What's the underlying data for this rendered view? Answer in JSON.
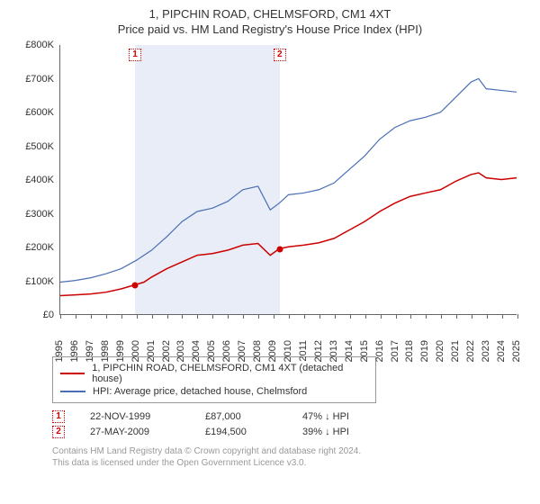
{
  "title_line1": "1, PIPCHIN ROAD, CHELMSFORD, CM1 4XT",
  "title_line2": "Price paid vs. HM Land Registry's House Price Index (HPI)",
  "chart": {
    "type": "line",
    "x_years": [
      1995,
      1996,
      1997,
      1998,
      1999,
      2000,
      2001,
      2002,
      2003,
      2004,
      2005,
      2006,
      2007,
      2008,
      2009,
      2010,
      2011,
      2012,
      2013,
      2014,
      2015,
      2016,
      2017,
      2018,
      2019,
      2020,
      2021,
      2022,
      2023,
      2024,
      2025
    ],
    "xlim": [
      1995,
      2025
    ],
    "ylim": [
      0,
      800000
    ],
    "ytick_step": 100000,
    "ytick_prefix": "£",
    "ytick_suffix": "K",
    "background_color": "#ffffff",
    "shade_color": "#e8edf7",
    "shade_from_year": 1999.9,
    "shade_to_year": 2009.4,
    "axis_color": "#666666",
    "tick_fontsize": 11,
    "series": [
      {
        "name": "price_paid",
        "label": "1, PIPCHIN ROAD, CHELMSFORD, CM1 4XT (detached house)",
        "color": "#cc0000",
        "line_width": 1.5,
        "points": [
          [
            1995,
            55000
          ],
          [
            1996,
            57000
          ],
          [
            1997,
            60000
          ],
          [
            1998,
            65000
          ],
          [
            1999,
            75000
          ],
          [
            1999.9,
            87000
          ],
          [
            2000.5,
            95000
          ],
          [
            2001,
            110000
          ],
          [
            2002,
            135000
          ],
          [
            2003,
            155000
          ],
          [
            2004,
            175000
          ],
          [
            2005,
            180000
          ],
          [
            2006,
            190000
          ],
          [
            2007,
            205000
          ],
          [
            2008,
            210000
          ],
          [
            2008.8,
            175000
          ],
          [
            2009.4,
            194500
          ],
          [
            2010,
            200000
          ],
          [
            2011,
            205000
          ],
          [
            2012,
            212000
          ],
          [
            2013,
            225000
          ],
          [
            2014,
            250000
          ],
          [
            2015,
            275000
          ],
          [
            2016,
            305000
          ],
          [
            2017,
            330000
          ],
          [
            2018,
            350000
          ],
          [
            2019,
            360000
          ],
          [
            2020,
            370000
          ],
          [
            2021,
            395000
          ],
          [
            2022,
            415000
          ],
          [
            2022.5,
            420000
          ],
          [
            2023,
            405000
          ],
          [
            2024,
            400000
          ],
          [
            2025,
            405000
          ]
        ]
      },
      {
        "name": "hpi",
        "label": "HPI: Average price, detached house, Chelmsford",
        "color": "#4a6fb5",
        "line_width": 1.2,
        "points": [
          [
            1995,
            95000
          ],
          [
            1996,
            100000
          ],
          [
            1997,
            108000
          ],
          [
            1998,
            120000
          ],
          [
            1999,
            135000
          ],
          [
            2000,
            160000
          ],
          [
            2001,
            190000
          ],
          [
            2002,
            230000
          ],
          [
            2003,
            275000
          ],
          [
            2004,
            305000
          ],
          [
            2005,
            315000
          ],
          [
            2006,
            335000
          ],
          [
            2007,
            370000
          ],
          [
            2008,
            380000
          ],
          [
            2008.8,
            310000
          ],
          [
            2009.4,
            330000
          ],
          [
            2010,
            355000
          ],
          [
            2011,
            360000
          ],
          [
            2012,
            370000
          ],
          [
            2013,
            390000
          ],
          [
            2014,
            430000
          ],
          [
            2015,
            470000
          ],
          [
            2016,
            520000
          ],
          [
            2017,
            555000
          ],
          [
            2018,
            575000
          ],
          [
            2019,
            585000
          ],
          [
            2020,
            600000
          ],
          [
            2021,
            645000
          ],
          [
            2022,
            690000
          ],
          [
            2022.5,
            700000
          ],
          [
            2023,
            670000
          ],
          [
            2024,
            665000
          ],
          [
            2025,
            660000
          ]
        ]
      }
    ],
    "sale_markers": [
      {
        "n": "1",
        "year": 1999.9,
        "value": 87000,
        "dot_color": "#cc0000"
      },
      {
        "n": "2",
        "year": 2009.4,
        "value": 194500,
        "dot_color": "#cc0000"
      }
    ]
  },
  "legend_border_color": "#999999",
  "sales": [
    {
      "n": "1",
      "date": "22-NOV-1999",
      "price": "£87,000",
      "pct": "47% ↓ HPI"
    },
    {
      "n": "2",
      "date": "27-MAY-2009",
      "price": "£194,500",
      "pct": "39% ↓ HPI"
    }
  ],
  "footer_line1": "Contains HM Land Registry data © Crown copyright and database right 2024.",
  "footer_line2": "This data is licensed under the Open Government Licence v3.0."
}
